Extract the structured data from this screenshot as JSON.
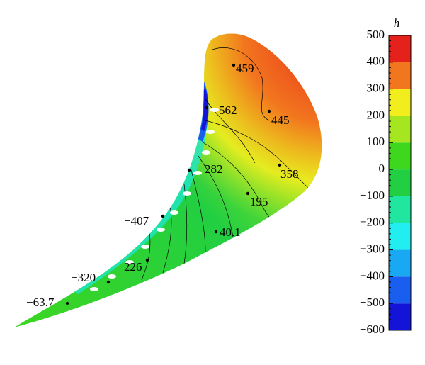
{
  "chart_data": {
    "type": "contour",
    "colorbar_label": "h",
    "yticks": [
      {
        "value": -600,
        "label": "−600"
      },
      {
        "value": -500,
        "label": "−500"
      },
      {
        "value": -400,
        "label": "−400"
      },
      {
        "value": -300,
        "label": "−300"
      },
      {
        "value": -200,
        "label": "−200"
      },
      {
        "value": -100,
        "label": "−100"
      },
      0,
      100,
      200,
      300,
      400,
      500
    ],
    "ylim": [
      -600,
      500
    ],
    "colors": [
      "#1414d8",
      "#1a5ef0",
      "#19a8f2",
      "#22eef0",
      "#20e6a0",
      "#22cf42",
      "#3fd61e",
      "#a6e620",
      "#f2ee1e",
      "#f2761e",
      "#e5211c"
    ],
    "annotations": [
      {
        "value": 459,
        "label": "459"
      },
      {
        "value": 562,
        "label": "562"
      },
      {
        "value": 445,
        "label": "445"
      },
      {
        "value": 282,
        "label": "282"
      },
      {
        "value": 358,
        "label": "358"
      },
      {
        "value": 195,
        "label": "195"
      },
      {
        "value": -407,
        "label": "−407"
      },
      {
        "value": 40.1,
        "label": "40.1"
      },
      {
        "value": 226,
        "label": "226"
      },
      {
        "value": -320,
        "label": "−320"
      },
      {
        "value": -63.7,
        "label": "−63.7"
      }
    ]
  }
}
